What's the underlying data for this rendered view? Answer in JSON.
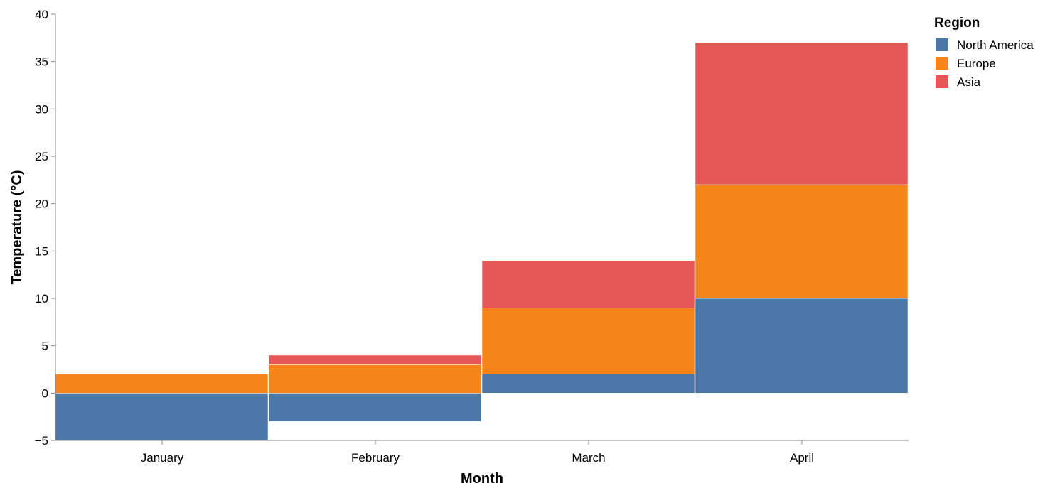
{
  "chart_data": {
    "type": "bar",
    "stacked": true,
    "xlabel": "Month",
    "ylabel": "Temperature (°C)",
    "ylim": [
      -5,
      40
    ],
    "yticks": [
      -5,
      0,
      5,
      10,
      15,
      20,
      25,
      30,
      35,
      40
    ],
    "grid": false,
    "categories": [
      "January",
      "February",
      "March",
      "April"
    ],
    "legend": {
      "title": "Region",
      "position": "top-right"
    },
    "series": [
      {
        "name": "North America",
        "color": "#4c78a8",
        "values": [
          -5,
          -3,
          2,
          10
        ]
      },
      {
        "name": "Europe",
        "color": "#f58518",
        "values": [
          2,
          3,
          7,
          12
        ]
      },
      {
        "name": "Asia",
        "color": "#e45756",
        "values": [
          0,
          1,
          5,
          15
        ]
      }
    ]
  }
}
